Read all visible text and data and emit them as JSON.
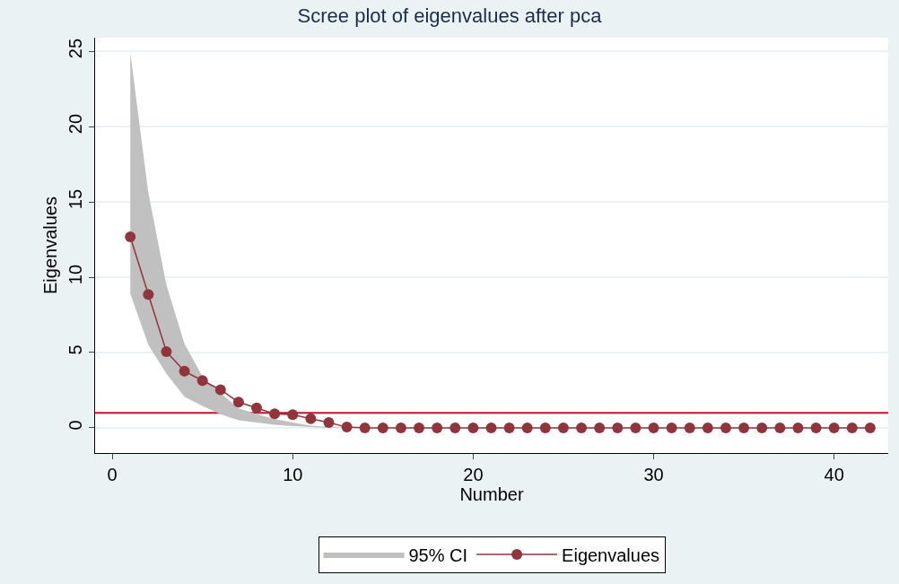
{
  "chart_data": {
    "type": "line",
    "title": "Scree plot of eigenvalues after pca",
    "xlabel": "Number",
    "ylabel": "Eigenvalues",
    "xlim": [
      -0.95,
      43
    ],
    "xticks": [
      0,
      10,
      20,
      30,
      40
    ],
    "ylim": [
      -1.67,
      25.9
    ],
    "yticks": [
      0,
      5,
      10,
      15,
      20,
      25
    ],
    "grid": "y",
    "legend": "bottom",
    "series": [
      {
        "name": "95% CI",
        "type": "area",
        "marker": "none",
        "color": "#c0c0c0",
        "x": [
          1,
          2,
          3,
          4,
          5,
          6,
          7,
          8,
          9,
          10,
          11,
          12,
          13
        ],
        "values": [
          null,
          null,
          null,
          null,
          null,
          null,
          null,
          null,
          null,
          null,
          null,
          null,
          null
        ],
        "lower": [
          8.9,
          5.5,
          3.6,
          2.07,
          1.45,
          0.9,
          0.5,
          0.35,
          0.2,
          0.12,
          0.05,
          0,
          0
        ],
        "upper": [
          24.9,
          15.6,
          9.5,
          5.6,
          3.4,
          2.3,
          1.3,
          0.9,
          0.6,
          0.35,
          0.15,
          0.05,
          0
        ]
      },
      {
        "name": "Eigenvalues",
        "marker": "circle",
        "color": "#90353b",
        "x": [
          1,
          2,
          3,
          4,
          5,
          6,
          7,
          8,
          9,
          10,
          11,
          12,
          13,
          14,
          15,
          16,
          17,
          18,
          19,
          20,
          21,
          22,
          23,
          24,
          25,
          26,
          27,
          28,
          29,
          30,
          31,
          32,
          33,
          34,
          35,
          36,
          37,
          38,
          39,
          40,
          41,
          42
        ],
        "values": [
          12.68,
          8.86,
          5.06,
          3.76,
          3.14,
          2.53,
          1.71,
          1.32,
          0.93,
          0.88,
          0.61,
          0.35,
          0.05,
          0,
          0,
          0,
          0,
          0,
          0,
          0,
          0,
          0,
          0,
          0,
          0,
          0,
          0,
          0,
          0,
          0,
          0,
          0,
          0,
          0,
          0,
          0,
          0,
          0,
          0,
          0,
          0,
          0
        ]
      }
    ],
    "ref_lines": [
      {
        "axis": "y",
        "value": 1,
        "color": "#c8102e"
      }
    ]
  }
}
